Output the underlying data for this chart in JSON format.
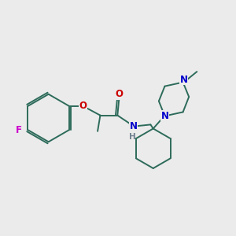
{
  "background_color": "#ebebeb",
  "bond_color": "#2d6b5a",
  "atom_colors": {
    "F": "#cc00cc",
    "O": "#cc0000",
    "N": "#0000cc",
    "C": "#2d6b5a",
    "H": "#708090"
  },
  "figsize": [
    3.0,
    3.0
  ],
  "dpi": 100
}
